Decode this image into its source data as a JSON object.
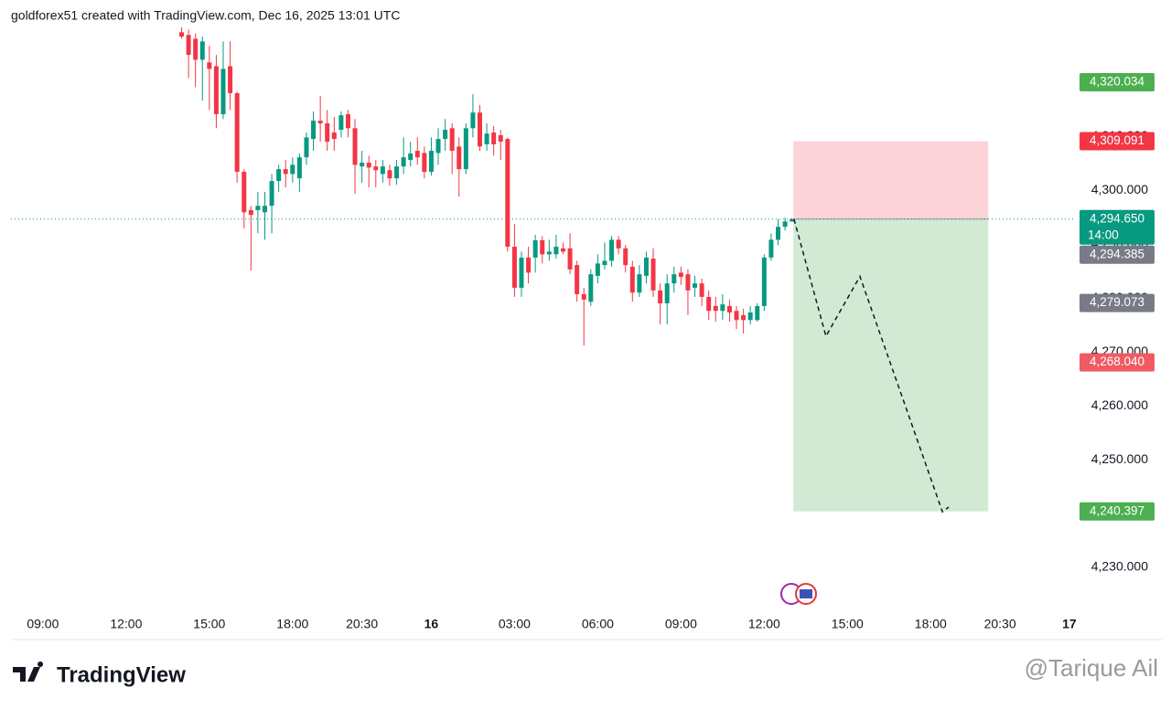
{
  "header": "goldforex51 created with TradingView.com, Dec 16, 2025 13:01 UTC",
  "chart_data": {
    "type": "candlestick",
    "open": [
      4329.3,
      4328.8,
      4328.1,
      4324.2,
      4323.7,
      4323.0,
      4314.1,
      4323.0,
      4318.0,
      4303.4,
      4296.3,
      4296.3,
      4295.9,
      4297.1,
      4301.7,
      4303.9,
      4303.0,
      4302.2,
      4306.1,
      4309.5,
      4312.9,
      4312.4,
      4310.7,
      4311.2,
      4314.1,
      4311.5,
      4304.4,
      4305.1,
      4304.4,
      4303.0,
      4303.7,
      4302.2,
      4304.4,
      4305.6,
      4307.3,
      4306.9,
      4303.4,
      4306.9,
      4309.5,
      4311.5,
      4308.1,
      4303.9,
      4311.5,
      4314.4,
      4308.5,
      4310.7,
      4310.2,
      4309.5,
      4289.5,
      4281.9,
      4287.5,
      4287.5,
      4290.7,
      4288.1,
      4288.1,
      4289.2,
      4289.2,
      4286.1,
      4280.7,
      4279.3,
      4284.1,
      4286.1,
      4286.9,
      4290.8,
      4289.2,
      4285.8,
      4281.0,
      4284.1,
      4287.3,
      4281.4,
      4279.0,
      4282.7,
      4284.7,
      4284.4,
      4281.9,
      4282.7,
      4280.2,
      4278.5,
      4277.6,
      4278.5,
      4277.6,
      4276.8,
      4275.9,
      4275.9,
      4278.5,
      4287.5,
      4290.8,
      4293.2,
      4294.2
    ],
    "high": [
      4330.2,
      4329.8,
      4329.1,
      4328.5,
      4326.8,
      4325.1,
      4327.6,
      4327.6,
      4318.3,
      4303.9,
      4297.1,
      4299.7,
      4299.7,
      4303.0,
      4304.7,
      4305.6,
      4306.1,
      4306.8,
      4310.7,
      4314.6,
      4317.5,
      4314.9,
      4313.6,
      4314.6,
      4314.9,
      4313.2,
      4307.3,
      4306.4,
      4305.6,
      4305.6,
      4304.7,
      4305.6,
      4309.8,
      4309.0,
      4309.8,
      4308.1,
      4309.8,
      4311.5,
      4313.2,
      4312.4,
      4309.8,
      4312.4,
      4317.8,
      4315.8,
      4312.4,
      4311.9,
      4311.2,
      4309.8,
      4293.7,
      4288.6,
      4289.5,
      4291.7,
      4291.5,
      4290.8,
      4291.7,
      4290.3,
      4292.0,
      4286.9,
      4281.9,
      4285.3,
      4288.1,
      4290.3,
      4291.5,
      4291.5,
      4289.8,
      4286.9,
      4286.1,
      4288.6,
      4289.2,
      4282.7,
      4284.4,
      4285.8,
      4285.8,
      4285.3,
      4284.1,
      4283.6,
      4281.4,
      4280.2,
      4280.7,
      4279.7,
      4278.5,
      4278.0,
      4278.5,
      4279.0,
      4288.1,
      4292.0,
      4294.6,
      4294.9,
      4294.8
    ],
    "low": [
      4328.1,
      4320.8,
      4319.1,
      4316.6,
      4314.9,
      4311.5,
      4313.2,
      4314.9,
      4301.4,
      4292.9,
      4285.1,
      4292.0,
      4290.8,
      4292.0,
      4299.7,
      4300.5,
      4301.4,
      4299.7,
      4304.7,
      4307.3,
      4309.0,
      4307.3,
      4307.3,
      4309.8,
      4309.8,
      4299.3,
      4301.4,
      4300.5,
      4300.5,
      4301.4,
      4300.8,
      4301.0,
      4303.0,
      4304.4,
      4304.7,
      4302.2,
      4302.7,
      4304.7,
      4307.3,
      4303.0,
      4298.8,
      4303.0,
      4309.8,
      4307.3,
      4307.3,
      4306.4,
      4305.6,
      4288.6,
      4280.2,
      4280.2,
      4282.7,
      4284.7,
      4286.4,
      4286.9,
      4287.3,
      4288.1,
      4284.4,
      4279.3,
      4271.2,
      4278.5,
      4282.7,
      4285.3,
      4285.8,
      4288.1,
      4284.7,
      4279.3,
      4280.2,
      4282.7,
      4280.2,
      4275.1,
      4275.1,
      4281.0,
      4282.4,
      4276.8,
      4280.2,
      4278.5,
      4275.9,
      4275.6,
      4275.9,
      4275.6,
      4274.2,
      4273.4,
      4275.1,
      4275.6,
      4277.6,
      4286.9,
      4289.8,
      4292.5,
      4294.1
    ],
    "close": [
      4328.5,
      4325.1,
      4324.2,
      4327.6,
      4322.5,
      4314.1,
      4322.5,
      4318.0,
      4303.4,
      4295.9,
      4295.4,
      4297.1,
      4297.1,
      4301.7,
      4303.9,
      4303.0,
      4304.7,
      4306.1,
      4309.8,
      4312.9,
      4312.4,
      4309.0,
      4309.5,
      4313.9,
      4311.5,
      4304.7,
      4305.1,
      4304.2,
      4303.7,
      4304.4,
      4302.2,
      4304.4,
      4306.1,
      4306.8,
      4306.1,
      4303.4,
      4307.3,
      4309.5,
      4311.2,
      4307.3,
      4303.9,
      4311.5,
      4314.4,
      4308.1,
      4310.5,
      4308.5,
      4309.0,
      4289.5,
      4281.9,
      4287.5,
      4284.7,
      4290.7,
      4288.1,
      4288.6,
      4289.5,
      4288.6,
      4285.3,
      4280.7,
      4279.7,
      4284.4,
      4286.4,
      4286.9,
      4290.8,
      4289.2,
      4286.1,
      4281.0,
      4284.4,
      4287.5,
      4281.4,
      4279.0,
      4282.7,
      4284.4,
      4283.9,
      4281.4,
      4282.7,
      4280.2,
      4277.6,
      4277.6,
      4278.8,
      4277.3,
      4275.9,
      4275.9,
      4277.3,
      4278.5,
      4287.5,
      4290.8,
      4293.2,
      4294.2,
      4294.65
    ],
    "up_color": "#089981",
    "down_color": "#f23645",
    "xlim": [
      -24.6,
      128.8
    ],
    "xticks": [
      {
        "value": -20,
        "label": "09:00"
      },
      {
        "value": -8,
        "label": "12:00"
      },
      {
        "value": 4,
        "label": "15:00"
      },
      {
        "value": 16,
        "label": "18:00"
      },
      {
        "value": 26,
        "label": "20:30"
      },
      {
        "value": 36,
        "label": "16"
      },
      {
        "value": 48,
        "label": "03:00"
      },
      {
        "value": 60,
        "label": "06:00"
      },
      {
        "value": 72,
        "label": "09:00"
      },
      {
        "value": 84,
        "label": "12:00"
      },
      {
        "value": 96,
        "label": "15:00"
      },
      {
        "value": 108,
        "label": "18:00"
      },
      {
        "value": 118,
        "label": "20:30"
      },
      {
        "value": 128,
        "label": "17"
      }
    ],
    "ylim": [
      4221.7,
      4330.2
    ],
    "yticks": [
      {
        "value": 4230,
        "label": "4,230.000"
      },
      {
        "value": 4240,
        "label": "4,240.000"
      },
      {
        "value": 4250,
        "label": "4,250.000"
      },
      {
        "value": 4260,
        "label": "4,260.000"
      },
      {
        "value": 4270,
        "label": "4,270.000"
      },
      {
        "value": 4280,
        "label": "4,280.000"
      },
      {
        "value": 4290,
        "label": "4,290.000"
      },
      {
        "value": 4300,
        "label": "4,300.000"
      },
      {
        "value": 4310,
        "label": "4,310.000"
      },
      {
        "value": 4320,
        "label": "4,320.000"
      }
    ],
    "grid": false,
    "last_price_line": {
      "value": 4294.65,
      "color": "#089981"
    },
    "price_labels": [
      {
        "value": 4320.034,
        "label": "4,320.034",
        "color": "#4caf50"
      },
      {
        "value": 4309.091,
        "label": "4,309.091",
        "color": "#f23645"
      },
      {
        "value": 4294.65,
        "label": "4,294.650",
        "countdown": "14:00",
        "color": "#089981"
      },
      {
        "value": 4294.385,
        "label": "4,294.385",
        "color": "#787b86"
      },
      {
        "value": 4279.073,
        "label": "4,279.073",
        "color": "#787b86"
      },
      {
        "value": 4268.04,
        "label": "4,268.040",
        "color": "#f05a63"
      },
      {
        "value": 4240.397,
        "label": "4,240.397",
        "color": "#4caf50"
      }
    ],
    "position": {
      "entry": 4294.65,
      "stop": 4309.091,
      "target": 4240.397,
      "x": [
        88.2,
        116.3
      ],
      "stop_color": "#fbd3d8",
      "target_color": "#d2ead3"
    },
    "projection": {
      "x": [
        88.3,
        92.9,
        97.8,
        109.7,
        110.6
      ],
      "values": [
        4294.6,
        4272.9,
        4284.0,
        4240.3,
        4241.2
      ]
    }
  },
  "footer": {
    "logo": "TradingView",
    "watermark": "@Tarique Ail"
  }
}
